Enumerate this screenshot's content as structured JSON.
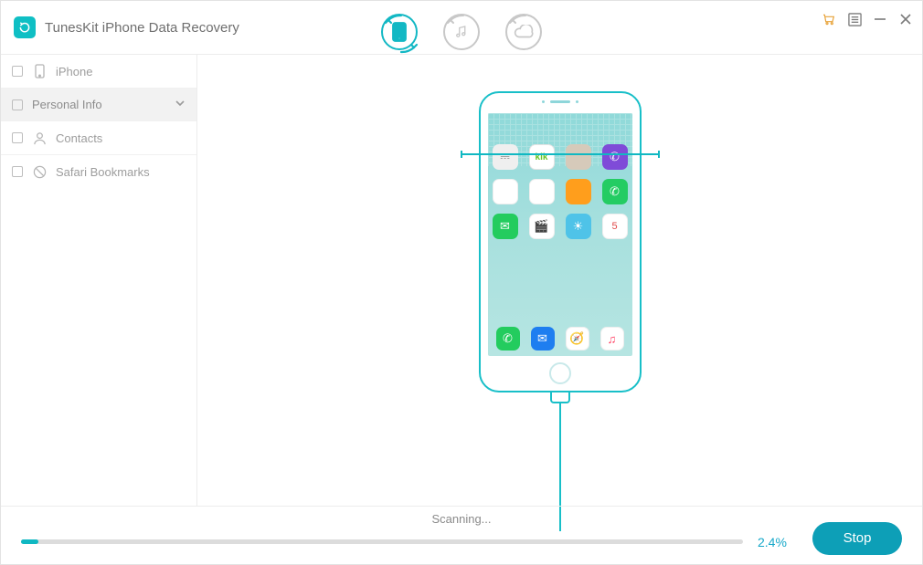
{
  "app": {
    "title": "TunesKit iPhone Data Recovery",
    "logo_bg": "#0fbfc4"
  },
  "window_controls": {
    "cart": true,
    "list": true,
    "minimize": true,
    "close": true
  },
  "mode_tabs": {
    "active_index": 0,
    "items": [
      {
        "name": "device",
        "active": true
      },
      {
        "name": "itunes",
        "active": false
      },
      {
        "name": "icloud",
        "active": false
      }
    ]
  },
  "sidebar": {
    "rows": [
      {
        "type": "item",
        "label": "iPhone",
        "icon": "phone",
        "checked": false
      },
      {
        "type": "group",
        "label": "Personal Info",
        "expanded": true,
        "checked": false
      },
      {
        "type": "item",
        "label": "Contacts",
        "icon": "contact",
        "checked": false
      },
      {
        "type": "item",
        "label": "Safari Bookmarks",
        "icon": "bookmark",
        "checked": false
      }
    ]
  },
  "phone": {
    "border_color": "#18bfc8",
    "screen_gradient_top": "#8fd9d9",
    "screen_gradient_bottom": "#b6e5e2",
    "scan_line_color": "#10b8c2",
    "apps_grid": [
      {
        "name": "waveform",
        "cls": "c-wave",
        "glyph": "⎓"
      },
      {
        "name": "kik",
        "cls": "c-kik",
        "glyph": "kik"
      },
      {
        "name": "texture",
        "cls": "c-sand",
        "glyph": ""
      },
      {
        "name": "viber",
        "cls": "c-viber",
        "glyph": "✆"
      },
      {
        "name": "store",
        "cls": "c-mail",
        "glyph": "⬇"
      },
      {
        "name": "photos",
        "cls": "c-photos",
        "glyph": "✿"
      },
      {
        "name": "notes",
        "cls": "c-note",
        "glyph": ""
      },
      {
        "name": "whatsapp",
        "cls": "c-wa",
        "glyph": "✆"
      },
      {
        "name": "messages",
        "cls": "c-msg",
        "glyph": "✉"
      },
      {
        "name": "video",
        "cls": "c-vid",
        "glyph": "🎬"
      },
      {
        "name": "weather",
        "cls": "c-weather",
        "glyph": "☀"
      },
      {
        "name": "calendar",
        "cls": "c-cal",
        "glyph": "5"
      }
    ],
    "dock": [
      {
        "name": "phone",
        "cls": "c-phone",
        "glyph": "✆"
      },
      {
        "name": "mail",
        "cls": "c-env",
        "glyph": "✉"
      },
      {
        "name": "safari",
        "cls": "c-safari",
        "glyph": "🧭"
      },
      {
        "name": "music",
        "cls": "c-music",
        "glyph": "♫"
      }
    ]
  },
  "footer": {
    "status_label": "Scanning...",
    "progress_percent": 2.4,
    "percent_label": "2.4%",
    "stop_label": "Stop",
    "progress_track": "#dcdcdc",
    "progress_fill": "#0fb8c2",
    "stop_bg": "#0d9fb7"
  }
}
